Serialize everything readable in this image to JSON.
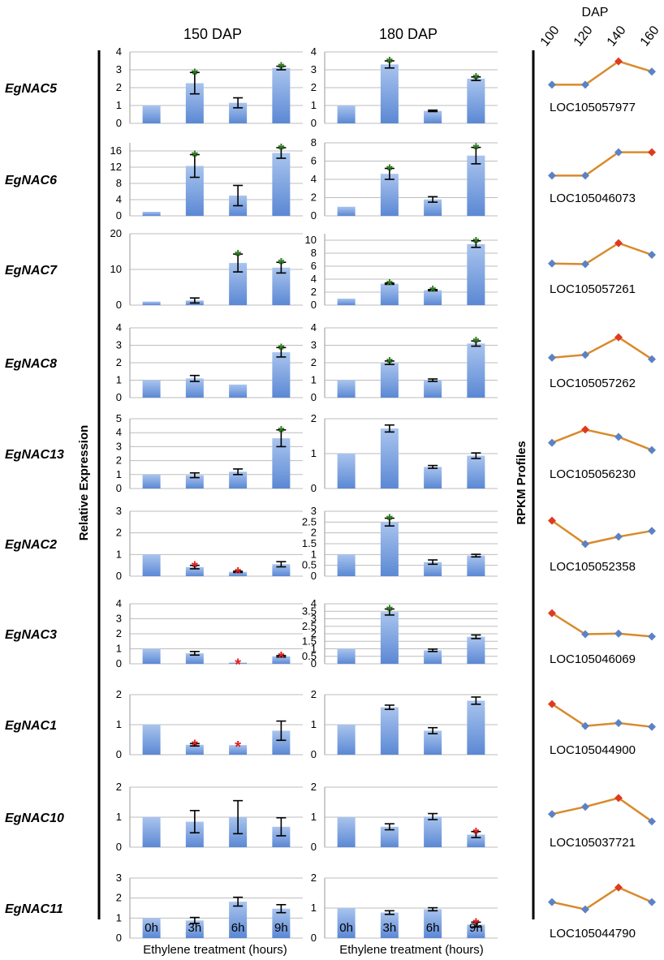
{
  "chart_data": {
    "type": "bar",
    "y_axis_label": "Relative Expression",
    "right_axis_label": "RPKM Profiles",
    "x_axis_label": "Ethylene treatment (hours)",
    "time_points": [
      "0h",
      "3h",
      "6h",
      "9h"
    ],
    "panels": [
      {
        "title": "150 DAP",
        "axis_title": "Ethylene treatment (hours)"
      },
      {
        "title": "180 DAP",
        "axis_title": "Ethylene treatment (hours)"
      }
    ],
    "rpkm": {
      "title": "DAP",
      "x": [
        "100",
        "120",
        "140",
        "160"
      ]
    },
    "colors": {
      "bar_top": "#a9c4ee",
      "bar_bottom": "#5b88d4",
      "sig_up": "#2e7d1e",
      "sig_down": "#e02020",
      "line": "#d98a2b",
      "point_normal": "#5b82c4",
      "point_peak": "#e03a1e"
    },
    "genes": [
      {
        "name": "EgNAC5",
        "locus": "LOC105057977",
        "p150": {
          "ymax": 4,
          "ticks": [
            "0",
            "1",
            "2",
            "3",
            "4"
          ],
          "values": [
            1.0,
            2.25,
            1.15,
            3.1
          ],
          "errors": [
            0,
            0.6,
            0.28,
            0.1
          ],
          "sig": [
            "",
            "up",
            "",
            "up"
          ]
        },
        "p180": {
          "ymax": 4,
          "ticks": [
            "0",
            "1",
            "2",
            "3",
            "4"
          ],
          "values": [
            1.0,
            3.3,
            0.7,
            2.5
          ],
          "errors": [
            0,
            0.2,
            0.04,
            0.1
          ],
          "sig": [
            "",
            "up",
            "",
            "up"
          ]
        },
        "rpkm": {
          "values": [
            0.1,
            0.1,
            0.9,
            0.55
          ],
          "peak": 2
        }
      },
      {
        "name": "EgNAC6",
        "locus": "LOC105046073",
        "p150": {
          "ymax": 18,
          "ticks": [
            "0",
            "4",
            "8",
            "12",
            "16"
          ],
          "values": [
            1.0,
            12.3,
            5.0,
            15.5
          ],
          "errors": [
            0,
            2.8,
            2.5,
            1.3
          ],
          "sig": [
            "",
            "up",
            "",
            "up"
          ]
        },
        "p180": {
          "ymax": 8,
          "ticks": [
            "0",
            "2",
            "4",
            "6",
            "8"
          ],
          "values": [
            1.0,
            4.6,
            1.8,
            6.6
          ],
          "errors": [
            0,
            0.6,
            0.3,
            0.9
          ],
          "sig": [
            "",
            "up",
            "",
            "up"
          ]
        },
        "rpkm": {
          "values": [
            0.1,
            0.1,
            0.9,
            0.9
          ],
          "peak": 3
        }
      },
      {
        "name": "EgNAC7",
        "locus": "LOC105057261",
        "p150": {
          "ymax": 20,
          "ticks": [
            "0",
            "10",
            "20"
          ],
          "values": [
            1.0,
            1.3,
            11.8,
            10.5
          ],
          "errors": [
            0,
            0.7,
            2.5,
            1.5
          ],
          "sig": [
            "",
            "",
            "up",
            "up"
          ]
        },
        "p180": {
          "ymax": 11,
          "ticks": [
            "0",
            "2",
            "4",
            "6",
            "8",
            "10"
          ],
          "values": [
            1.0,
            3.3,
            2.3,
            9.4
          ],
          "errors": [
            0,
            0.1,
            0.1,
            0.5
          ],
          "sig": [
            "",
            "up",
            "up",
            "up"
          ]
        },
        "rpkm": {
          "values": [
            0.2,
            0.18,
            0.9,
            0.5
          ],
          "peak": 2
        }
      },
      {
        "name": "EgNAC8",
        "locus": "LOC105057262",
        "p150": {
          "ymax": 4,
          "ticks": [
            "0",
            "1",
            "2",
            "3",
            "4"
          ],
          "values": [
            1.0,
            1.1,
            0.75,
            2.6
          ],
          "errors": [
            0,
            0.17,
            0,
            0.27
          ],
          "sig": [
            "",
            "",
            "",
            "up"
          ]
        },
        "p180": {
          "ymax": 4,
          "ticks": [
            "0",
            "1",
            "2",
            "3",
            "4"
          ],
          "values": [
            1.0,
            2.0,
            1.0,
            3.1
          ],
          "errors": [
            0,
            0.1,
            0.07,
            0.15
          ],
          "sig": [
            "",
            "up",
            "",
            "up"
          ]
        },
        "rpkm": {
          "values": [
            0.2,
            0.3,
            0.9,
            0.15
          ],
          "peak": 2
        }
      },
      {
        "name": "EgNAC13",
        "locus": "LOC105056230",
        "p150": {
          "ymax": 5,
          "ticks": [
            "0",
            "1",
            "2",
            "3",
            "4",
            "5"
          ],
          "values": [
            1.0,
            0.95,
            1.2,
            3.6
          ],
          "errors": [
            0,
            0.17,
            0.2,
            0.6
          ],
          "sig": [
            "",
            "",
            "",
            "up"
          ]
        },
        "p180": {
          "ymax": 2,
          "ticks": [
            "0",
            "1",
            "2"
          ],
          "values": [
            1.0,
            1.72,
            0.62,
            0.94
          ],
          "errors": [
            0,
            0.1,
            0.04,
            0.08
          ],
          "sig": [
            "",
            "",
            "",
            ""
          ]
        },
        "rpkm": {
          "values": [
            0.4,
            0.85,
            0.6,
            0.15
          ],
          "peak": 1
        }
      },
      {
        "name": "EgNAC2",
        "locus": "LOC105052358",
        "p150": {
          "ymax": 3,
          "ticks": [
            "0",
            "1",
            "2",
            "3"
          ],
          "values": [
            1.0,
            0.42,
            0.2,
            0.55
          ],
          "errors": [
            0,
            0.08,
            0.03,
            0.12
          ],
          "sig": [
            "",
            "down",
            "down",
            ""
          ]
        },
        "p180": {
          "ymax": 3,
          "ticks": [
            "0",
            "0.5",
            "1",
            "1.5",
            "2",
            "2.5",
            "3"
          ],
          "values": [
            1.0,
            2.5,
            0.65,
            0.95
          ],
          "errors": [
            0,
            0.18,
            0.1,
            0.06
          ],
          "sig": [
            "",
            "up",
            "",
            ""
          ]
        },
        "rpkm": {
          "values": [
            0.9,
            0.1,
            0.35,
            0.55
          ],
          "peak": 0
        }
      },
      {
        "name": "EgNAC3",
        "locus": "LOC105046069",
        "p150": {
          "ymax": 4,
          "ticks": [
            "0",
            "1",
            "2",
            "3",
            "4"
          ],
          "values": [
            1.0,
            0.7,
            0.08,
            0.5
          ],
          "errors": [
            0,
            0.12,
            0,
            0.05
          ],
          "sig": [
            "",
            "",
            "down",
            "down"
          ]
        },
        "p180": {
          "ymax": 4,
          "ticks": [
            "0",
            "0.5",
            "1",
            "1.5",
            "2",
            "2.5",
            "3",
            "3.5",
            "4"
          ],
          "values": [
            1.0,
            3.45,
            0.9,
            1.8
          ],
          "errors": [
            0,
            0.2,
            0.08,
            0.12
          ],
          "sig": [
            "",
            "up",
            "",
            ""
          ]
        },
        "rpkm": {
          "values": [
            0.9,
            0.18,
            0.2,
            0.1
          ],
          "peak": 0
        }
      },
      {
        "name": "EgNAC1",
        "locus": "LOC105044900",
        "p150": {
          "ymax": 2,
          "ticks": [
            "0",
            "1",
            "2"
          ],
          "values": [
            1.0,
            0.33,
            0.32,
            0.8
          ],
          "errors": [
            0,
            0.04,
            0,
            0.32
          ],
          "sig": [
            "",
            "down",
            "down",
            ""
          ]
        },
        "p180": {
          "ymax": 2,
          "ticks": [
            "0",
            "1",
            "2"
          ],
          "values": [
            1.0,
            1.58,
            0.8,
            1.8
          ],
          "errors": [
            0,
            0.07,
            0.1,
            0.12
          ],
          "sig": [
            "",
            "",
            "",
            ""
          ]
        },
        "rpkm": {
          "values": [
            0.9,
            0.15,
            0.25,
            0.12
          ],
          "peak": 0
        }
      },
      {
        "name": "EgNAC10",
        "locus": "LOC105037721",
        "p150": {
          "ymax": 2,
          "ticks": [
            "0",
            "1",
            "2"
          ],
          "values": [
            1.0,
            0.85,
            1.0,
            0.68
          ],
          "errors": [
            0,
            0.37,
            0.55,
            0.3
          ],
          "sig": [
            "",
            "",
            "",
            ""
          ]
        },
        "p180": {
          "ymax": 2,
          "ticks": [
            "0",
            "1",
            "2"
          ],
          "values": [
            1.0,
            0.68,
            1.02,
            0.42
          ],
          "errors": [
            0,
            0.1,
            0.1,
            0.1
          ],
          "sig": [
            "",
            "",
            "",
            "down"
          ]
        },
        "rpkm": {
          "values": [
            0.3,
            0.55,
            0.85,
            0.05
          ],
          "peak": 2
        }
      },
      {
        "name": "EgNAC11",
        "locus": "LOC105044790",
        "p150": {
          "ymax": 3,
          "ticks": [
            "0",
            "1",
            "2",
            "3"
          ],
          "values": [
            1.0,
            0.88,
            1.82,
            1.47
          ],
          "errors": [
            0,
            0.15,
            0.22,
            0.2
          ],
          "sig": [
            "",
            "",
            "",
            ""
          ]
        },
        "p180": {
          "ymax": 2,
          "ticks": [
            "0",
            "1",
            "2"
          ],
          "values": [
            1.0,
            0.85,
            0.96,
            0.45
          ],
          "errors": [
            0,
            0.06,
            0.05,
            0.08
          ],
          "sig": [
            "",
            "",
            "",
            "down"
          ]
        },
        "rpkm": {
          "values": [
            0.4,
            0.15,
            0.9,
            0.4
          ],
          "peak": 2
        }
      }
    ]
  }
}
